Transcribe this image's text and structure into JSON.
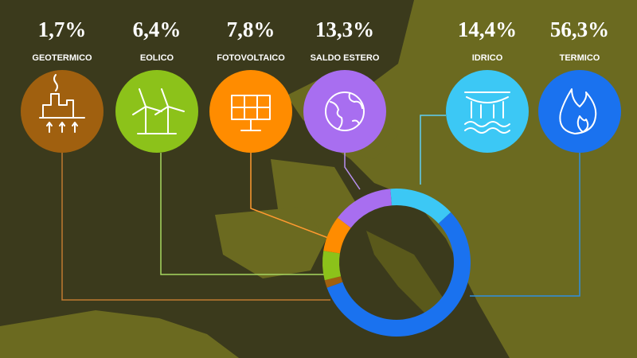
{
  "chart_data": {
    "type": "donut",
    "categories": [
      "GEOTERMICO",
      "EOLICO",
      "FOTOVOLTAICO",
      "SALDO ESTERO",
      "IDRICO",
      "TERMICO"
    ],
    "values": [
      1.7,
      6.4,
      7.8,
      13.3,
      14.4,
      56.3
    ],
    "value_labels": [
      "1,7%",
      "6,4%",
      "7,8%",
      "13,3%",
      "14,4%",
      "56,3%"
    ],
    "colors": [
      "#a0600f",
      "#8cc21a",
      "#ff8c00",
      "#a86ef0",
      "#3cc8f5",
      "#1a72ef"
    ]
  }
}
